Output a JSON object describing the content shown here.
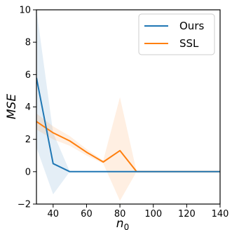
{
  "chart_data": {
    "type": "line",
    "xlabel": "n",
    "xlabel_sub": "0",
    "ylabel": "MSE",
    "xlim": [
      30,
      140
    ],
    "ylim": [
      -2,
      10
    ],
    "xticks": [
      40,
      60,
      80,
      100,
      120,
      140
    ],
    "yticks": [
      -2,
      0,
      2,
      4,
      6,
      8,
      10
    ],
    "grid": false,
    "legend_position": "top-right",
    "series": [
      {
        "name": "Ours",
        "color": "#1f77b4",
        "band_color": "#1f77b4",
        "x": [
          30,
          40,
          50,
          60,
          70,
          80,
          90,
          100,
          110,
          120,
          130,
          140
        ],
        "y": [
          5.8,
          0.5,
          0.0,
          0.0,
          0.0,
          0.0,
          0.0,
          0.0,
          0.0,
          0.0,
          0.0,
          0.0
        ],
        "lower": [
          1.5,
          -1.4,
          0.0,
          0.0,
          0.0,
          0.0,
          0.0,
          0.0,
          0.0,
          0.0,
          0.0,
          0.0
        ],
        "upper": [
          10.0,
          2.4,
          0.0,
          0.0,
          0.0,
          0.0,
          0.0,
          0.0,
          0.0,
          0.0,
          0.0,
          0.0
        ]
      },
      {
        "name": "SSL",
        "color": "#ff7f0e",
        "band_color": "#ff7f0e",
        "x": [
          30,
          40,
          50,
          60,
          70,
          80,
          90,
          100,
          110,
          120,
          130,
          140
        ],
        "y": [
          3.1,
          2.4,
          1.9,
          1.2,
          0.6,
          1.3,
          0.0,
          0.0,
          0.0,
          0.0,
          0.0,
          0.0
        ],
        "lower": [
          2.6,
          2.0,
          1.6,
          1.0,
          0.5,
          -1.8,
          0.0,
          0.0,
          0.0,
          0.0,
          0.0,
          0.0
        ],
        "upper": [
          3.6,
          2.8,
          2.2,
          1.4,
          0.7,
          4.6,
          0.0,
          0.0,
          0.0,
          0.0,
          0.0,
          0.0
        ]
      }
    ]
  }
}
